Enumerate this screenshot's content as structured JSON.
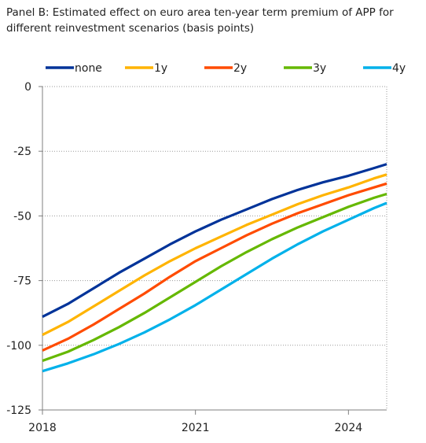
{
  "chart_data": {
    "type": "line",
    "title": "Panel B: Estimated effect on euro area ten-year term premium of APP for different reinvestment scenarios (basis points)",
    "xlabel": "",
    "ylabel": "",
    "x": [
      2018.0,
      2018.5,
      2019.0,
      2019.5,
      2020.0,
      2020.5,
      2021.0,
      2021.5,
      2022.0,
      2022.5,
      2023.0,
      2023.5,
      2024.0,
      2024.5,
      2024.75
    ],
    "xlim": [
      2018,
      2024.75
    ],
    "ylim": [
      -125,
      0
    ],
    "xticks": [
      2018,
      2021,
      2024
    ],
    "xtick_labels": [
      "2018",
      "2021",
      "2024"
    ],
    "yticks": [
      0,
      -25,
      -50,
      -75,
      -100,
      -125
    ],
    "ytick_labels": [
      "0",
      "-25",
      "-50",
      "-75",
      "-100",
      "-125"
    ],
    "grid": "horizontal dotted",
    "legend": "top",
    "series": [
      {
        "name": "none",
        "color": "#003399",
        "values": [
          -89,
          -84,
          -78,
          -72,
          -66.5,
          -61,
          -56,
          -51.5,
          -47.5,
          -43.5,
          -40,
          -37,
          -34.5,
          -31.5,
          -30
        ]
      },
      {
        "name": "1y",
        "color": "#ffb400",
        "values": [
          -96,
          -91,
          -85,
          -79,
          -73,
          -67.5,
          -62.5,
          -58,
          -53.5,
          -49.5,
          -45.5,
          -42,
          -39,
          -35.5,
          -34
        ]
      },
      {
        "name": "2y",
        "color": "#ff4b00",
        "values": [
          -102,
          -97.5,
          -92,
          -86,
          -80,
          -73.5,
          -67.5,
          -62.5,
          -57.5,
          -53,
          -49,
          -45.5,
          -42,
          -39,
          -37.5
        ]
      },
      {
        "name": "3y",
        "color": "#65b800",
        "values": [
          -106,
          -102.5,
          -98,
          -93,
          -87.5,
          -81.5,
          -75.5,
          -69.5,
          -64,
          -59,
          -54.5,
          -50.5,
          -46.5,
          -43,
          -41.5
        ]
      },
      {
        "name": "4y",
        "color": "#00b1ea",
        "values": [
          -110,
          -107,
          -103.5,
          -99.5,
          -95,
          -90,
          -84.5,
          -78.5,
          -72.5,
          -66.5,
          -61,
          -56,
          -51.5,
          -47,
          -45
        ]
      }
    ]
  }
}
